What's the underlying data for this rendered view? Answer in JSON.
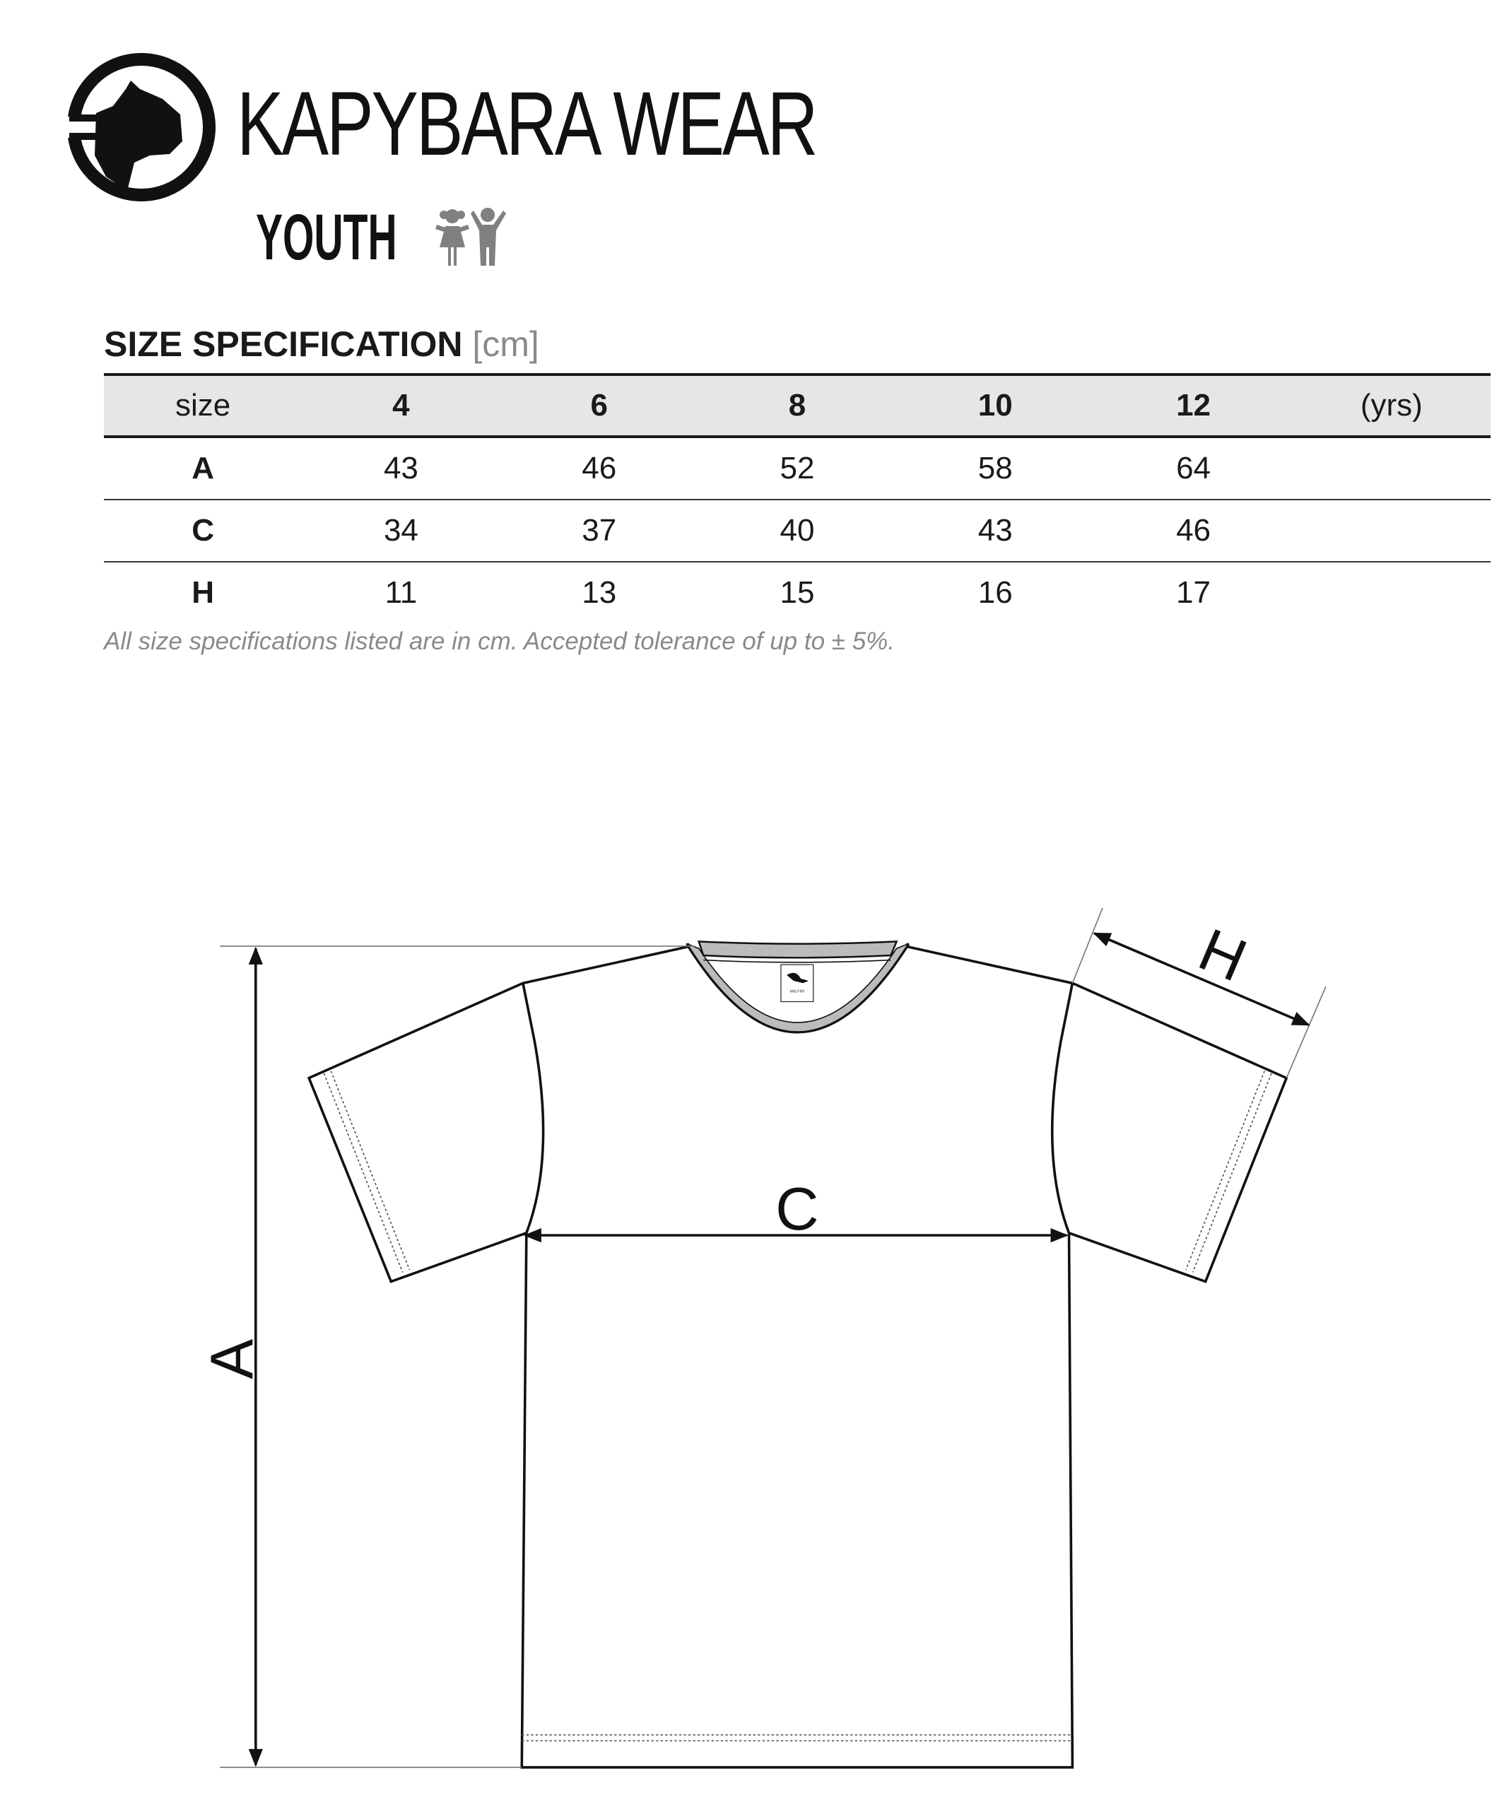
{
  "brand": {
    "name": "KAPYBARA WEAR",
    "line": "YOUTH",
    "logo_icon": "capybara-head-circle-icon",
    "kids_icon": "children-icon",
    "kids_icon_color": "#808080"
  },
  "spec": {
    "title": "SIZE SPECIFICATION",
    "unit": "[cm]",
    "header": {
      "label": "size",
      "sizes": [
        "4",
        "6",
        "8",
        "10",
        "12"
      ],
      "unit": "(yrs)"
    },
    "rows": [
      {
        "label": "A",
        "values": [
          "43",
          "46",
          "52",
          "58",
          "64"
        ]
      },
      {
        "label": "C",
        "values": [
          "34",
          "37",
          "40",
          "43",
          "46"
        ]
      },
      {
        "label": "H",
        "values": [
          "11",
          "13",
          "15",
          "16",
          "17"
        ]
      }
    ],
    "note": "All size specifications listed are in cm. Accepted tolerance of up to ± 5%.",
    "header_bg": "#e6e6e8"
  },
  "diagram": {
    "label_a": "A",
    "label_c": "C",
    "label_h": "H",
    "neck_label_brand": "MALFINI"
  }
}
